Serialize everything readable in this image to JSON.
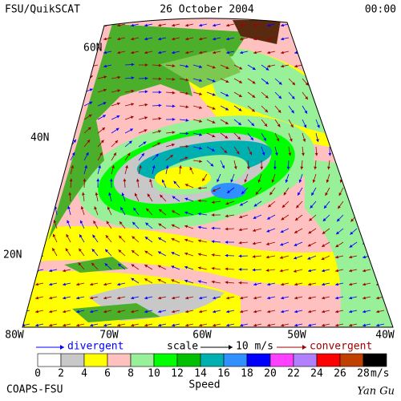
{
  "header": {
    "left": "FSU/QuikSCAT",
    "center": "26 October 2004",
    "right": "00:00"
  },
  "lat_labels": [
    "60N",
    "40N",
    "20N"
  ],
  "lon_labels": [
    "80W",
    "70W",
    "60W",
    "50W",
    "40W"
  ],
  "legend": {
    "divergent": "divergent",
    "scale": "scale",
    "scale_value": "10 m/s",
    "convergent": "convergent"
  },
  "colorbar": {
    "colors": [
      "#ffffff",
      "#c8c8c8",
      "#ffff00",
      "#ffc0c0",
      "#98f098",
      "#00ff00",
      "#00c000",
      "#00b0b0",
      "#3090ff",
      "#0000ff",
      "#ff40ff",
      "#b080ff",
      "#ff0000",
      "#c04000",
      "#000000"
    ],
    "labels": [
      0,
      2,
      4,
      6,
      8,
      10,
      12,
      14,
      16,
      18,
      20,
      22,
      24,
      26,
      28
    ],
    "unit": "m/s",
    "title": "Speed"
  },
  "footer": {
    "left": "COAPS-FSU",
    "right": "Yan Gu"
  }
}
